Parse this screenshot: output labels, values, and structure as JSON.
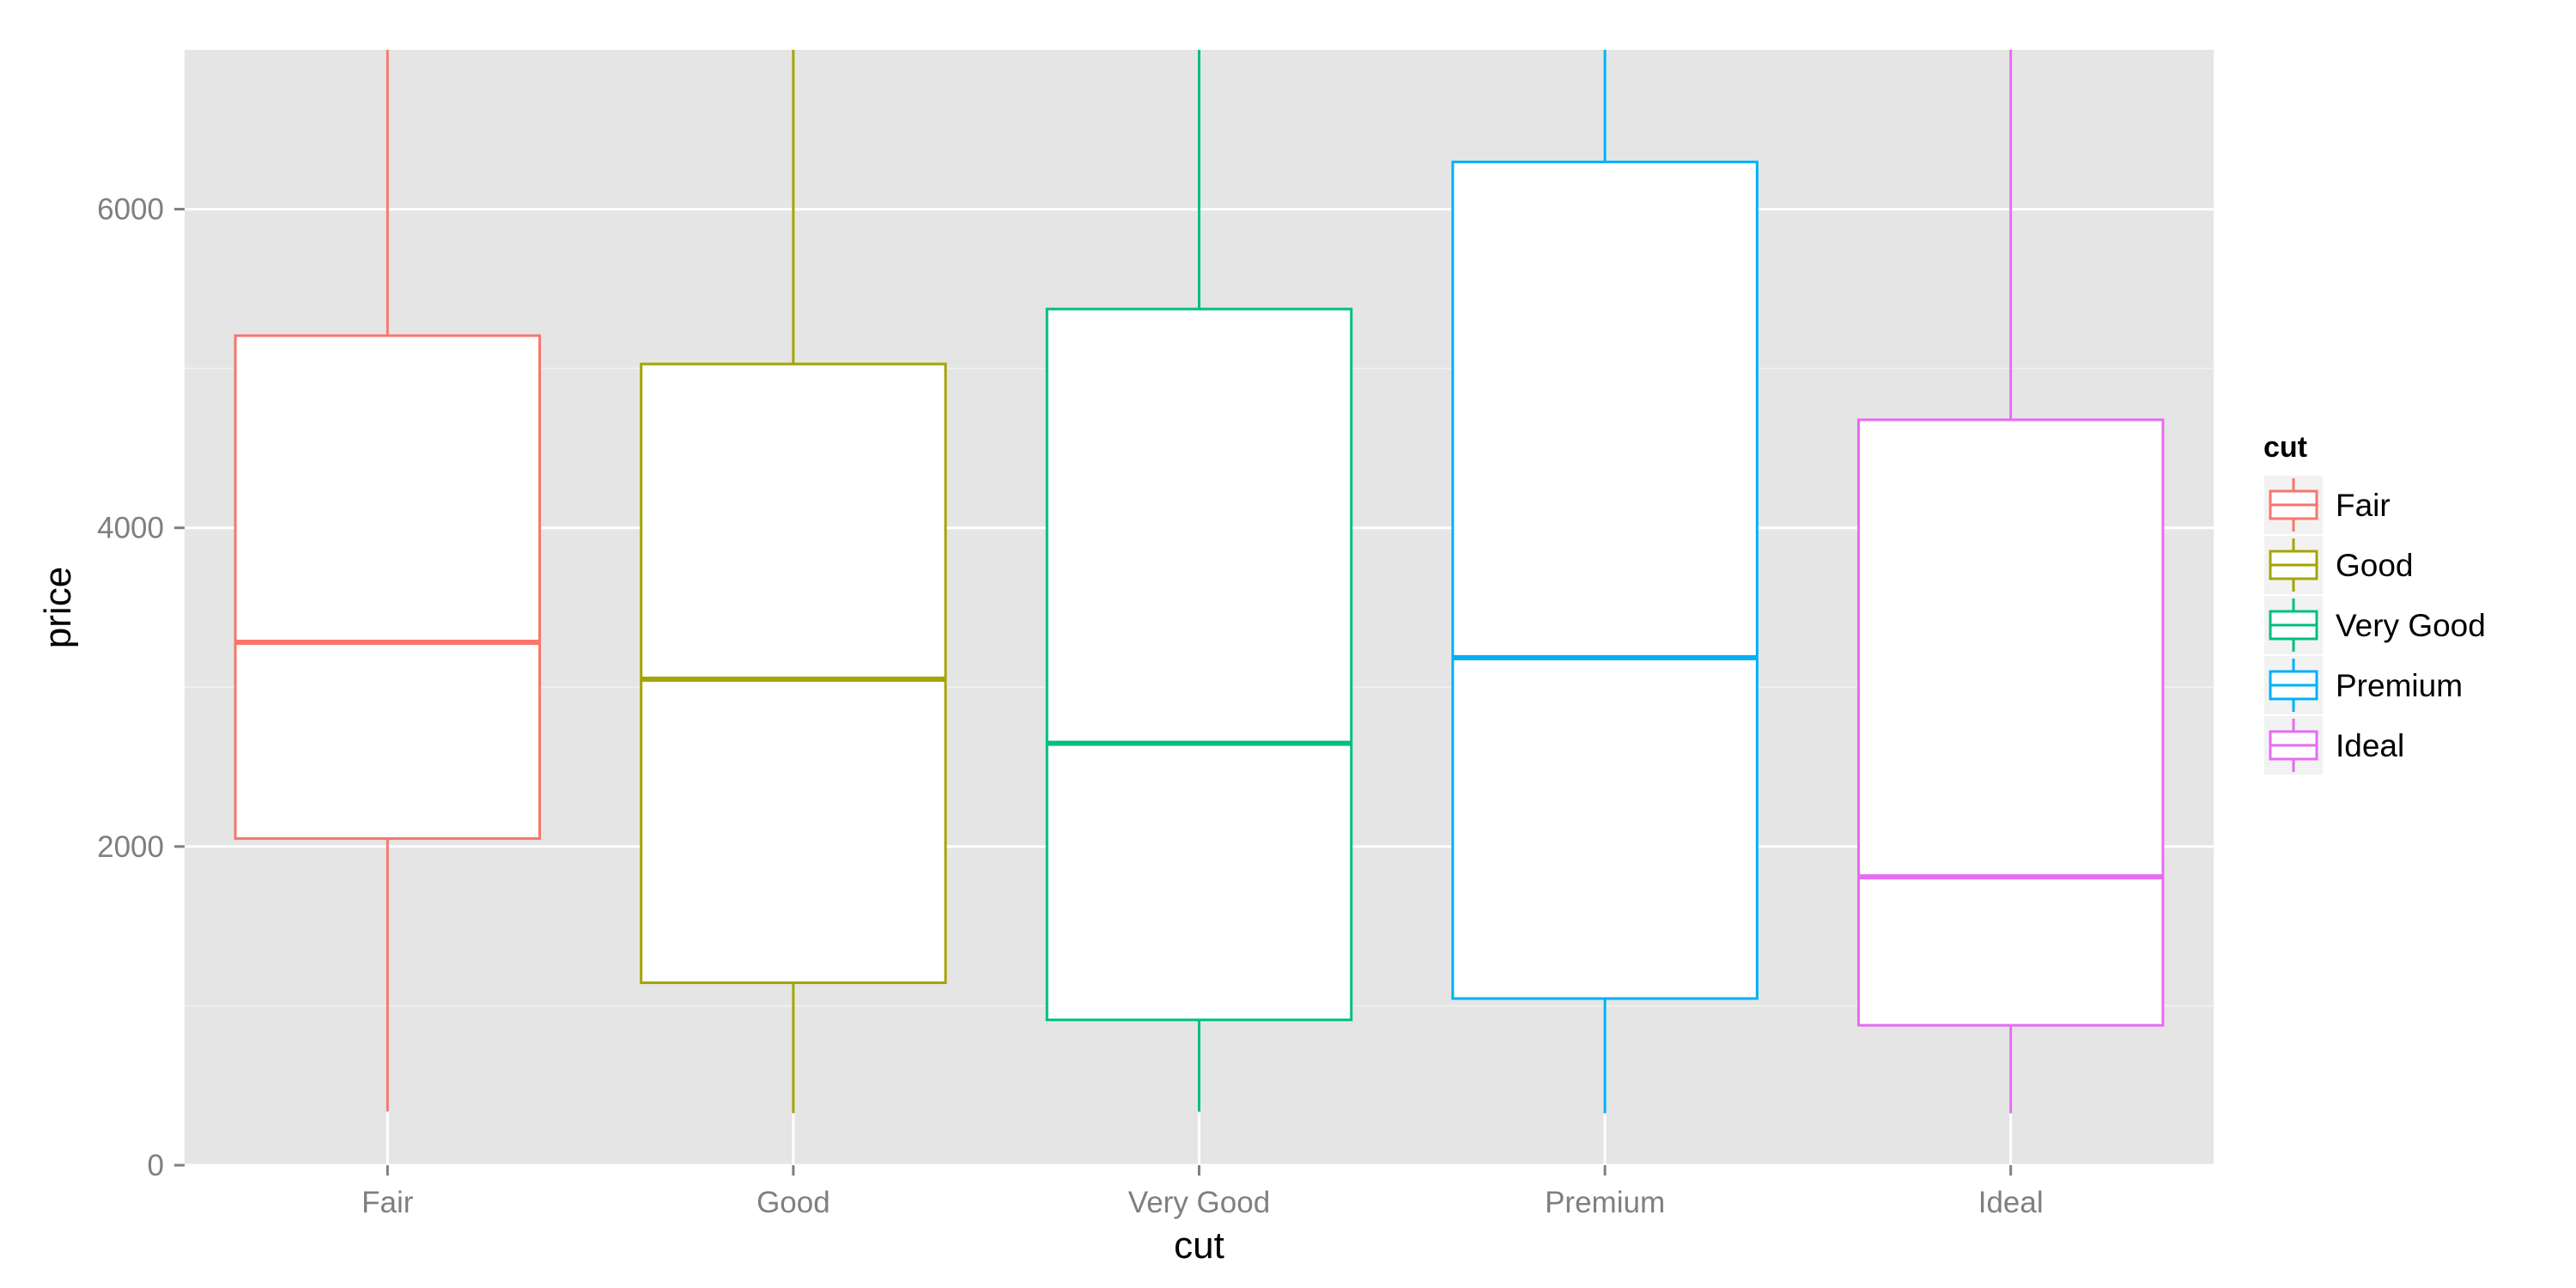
{
  "chart_data": {
    "type": "boxplot",
    "title": "",
    "xlabel": "cut",
    "ylabel": "price",
    "categories": [
      "Fair",
      "Good",
      "Very Good",
      "Premium",
      "Ideal"
    ],
    "ylim": [
      0,
      7000
    ],
    "yticks": [
      0,
      2000,
      4000,
      6000
    ],
    "ytick_labels": [
      "0",
      "2000",
      "4000",
      "6000"
    ],
    "grid": true,
    "legend": {
      "title": "cut",
      "position": "right",
      "entries": [
        "Fair",
        "Good",
        "Very Good",
        "Premium",
        "Ideal"
      ]
    },
    "colors": [
      "#F8766D",
      "#A3A500",
      "#00BF7D",
      "#00B0F6",
      "#E76BF3"
    ],
    "panel_background": "#E5E5E5",
    "gridline_color": "#FFFFFF",
    "series": [
      {
        "category": "Fair",
        "whisker_low": 337,
        "q1": 2050,
        "median": 3282,
        "q3": 5206,
        "whisker_high": 7000
      },
      {
        "category": "Good",
        "whisker_low": 327,
        "q1": 1145,
        "median": 3050,
        "q3": 5028,
        "whisker_high": 7000
      },
      {
        "category": "Very Good",
        "whisker_low": 336,
        "q1": 912,
        "median": 2648,
        "q3": 5373,
        "whisker_high": 7000
      },
      {
        "category": "Premium",
        "whisker_low": 326,
        "q1": 1046,
        "median": 3185,
        "q3": 6296,
        "whisker_high": 7000
      },
      {
        "category": "Ideal",
        "whisker_low": 326,
        "q1": 878,
        "median": 1810,
        "q3": 4678,
        "whisker_high": 7000
      }
    ]
  }
}
